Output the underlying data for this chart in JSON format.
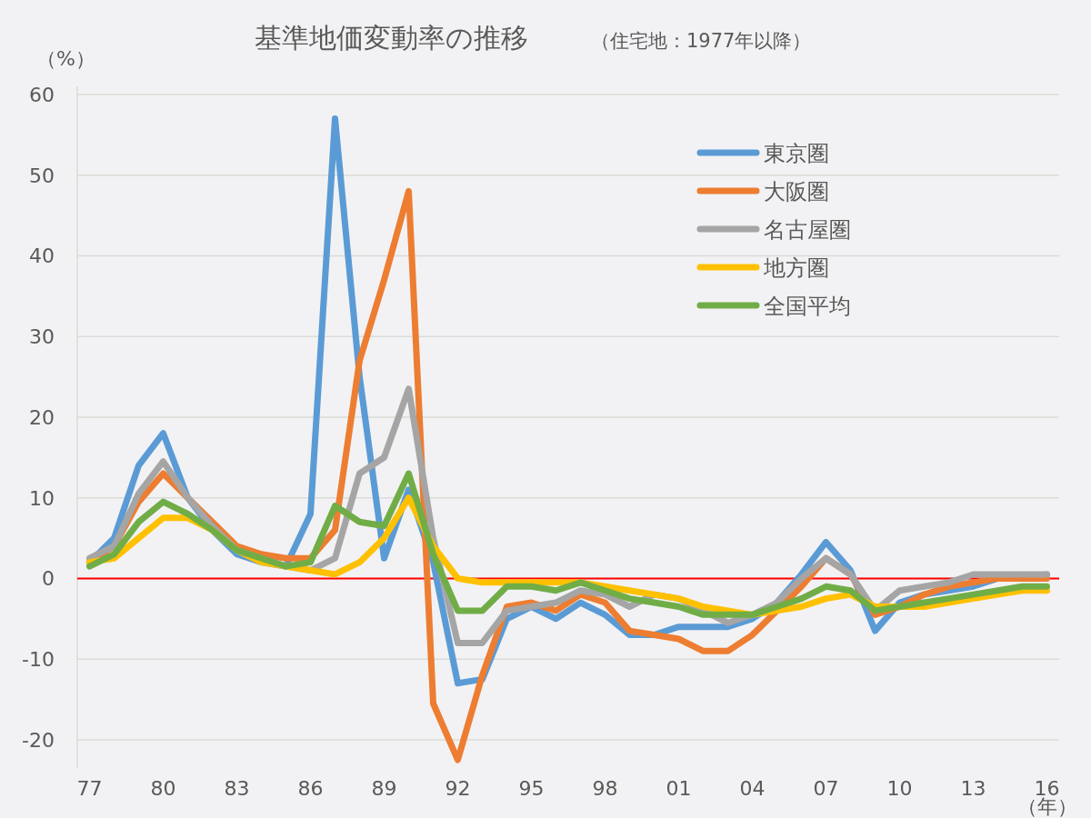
{
  "chart_data": {
    "type": "line",
    "title": "基準地価変動率の推移",
    "subtitle": "（住宅地：1977年以降）",
    "ylabel": "（%）",
    "xlabel": "（年）",
    "x": [
      1977,
      1978,
      1979,
      1980,
      1981,
      1982,
      1983,
      1984,
      1985,
      1986,
      1987,
      1988,
      1989,
      1990,
      1991,
      1992,
      1993,
      1994,
      1995,
      1996,
      1997,
      1998,
      1999,
      2000,
      2001,
      2002,
      2003,
      2004,
      2005,
      2006,
      2007,
      2008,
      2009,
      2010,
      2011,
      2012,
      2013,
      2014,
      2015,
      2016
    ],
    "series": [
      {
        "name": "東京圏",
        "color": "#5b9bd5",
        "values": [
          2,
          5,
          14,
          18,
          10,
          6,
          3,
          2,
          1.5,
          8,
          57,
          25,
          2.5,
          11,
          2,
          -13,
          -12.5,
          -5,
          -3.5,
          -5,
          -3,
          -4.5,
          -7,
          -7,
          -6,
          -6,
          -6,
          -5,
          -3,
          0.5,
          4.5,
          1,
          -6.5,
          -3,
          -2,
          -1.5,
          -1,
          0,
          0,
          0.5
        ]
      },
      {
        "name": "大阪圏",
        "color": "#ed7d31",
        "values": [
          2,
          4,
          9.5,
          13,
          10,
          7,
          4,
          3,
          2.5,
          2.5,
          6,
          27,
          37,
          48,
          -15.5,
          -22.5,
          -12,
          -3.5,
          -3,
          -4,
          -2,
          -3,
          -6.5,
          -7,
          -7.5,
          -9,
          -9,
          -7,
          -4,
          -1,
          2.5,
          0.5,
          -4.5,
          -3.5,
          -2,
          -1,
          -0.5,
          0,
          0,
          0
        ]
      },
      {
        "name": "名古屋圏",
        "color": "#a5a5a5",
        "values": [
          2.5,
          4,
          10.5,
          14.5,
          10,
          6.5,
          3.5,
          2.5,
          1.5,
          1,
          2.5,
          13,
          15,
          23.5,
          5,
          -8,
          -8,
          -4,
          -3.5,
          -3,
          -1.5,
          -2,
          -3.5,
          -2,
          -2.5,
          -4,
          -5.5,
          -4.5,
          -3,
          0,
          2.5,
          0.5,
          -4,
          -1.5,
          -1,
          -0.5,
          0.5,
          0.5,
          0.5,
          0.5
        ]
      },
      {
        "name": "地方圏",
        "color": "#ffc000",
        "values": [
          2,
          2.5,
          5,
          7.5,
          7.5,
          6,
          3.5,
          2,
          1.5,
          1,
          0.5,
          2,
          5,
          10,
          4,
          0,
          -0.5,
          -0.5,
          -0.5,
          -0.5,
          -0.5,
          -1,
          -1.5,
          -2,
          -2.5,
          -3.5,
          -4,
          -4.5,
          -4,
          -3.5,
          -2.5,
          -2,
          -3.5,
          -3.5,
          -3.5,
          -3,
          -2.5,
          -2,
          -1.5,
          -1.5
        ]
      },
      {
        "name": "全国平均",
        "color": "#70ad47",
        "values": [
          1.5,
          3,
          7,
          9.5,
          8,
          6,
          3.5,
          2.5,
          1.5,
          2,
          9,
          7,
          6.5,
          13,
          3,
          -4,
          -4,
          -1,
          -1,
          -1.5,
          -0.5,
          -1.5,
          -2.5,
          -3,
          -3.5,
          -4.5,
          -4.5,
          -4.5,
          -3.5,
          -2.5,
          -1,
          -1.5,
          -4,
          -3.5,
          -3,
          -2.5,
          -2,
          -1.5,
          -1,
          -1
        ]
      }
    ],
    "xlim": [
      1976.5,
      2016.5
    ],
    "xticks": [
      {
        "value": 1977,
        "label": "77"
      },
      {
        "value": 1980,
        "label": "80"
      },
      {
        "value": 1983,
        "label": "83"
      },
      {
        "value": 1986,
        "label": "86"
      },
      {
        "value": 1989,
        "label": "89"
      },
      {
        "value": 1992,
        "label": "92"
      },
      {
        "value": 1995,
        "label": "95"
      },
      {
        "value": 1998,
        "label": "98"
      },
      {
        "value": 2001,
        "label": "01"
      },
      {
        "value": 2004,
        "label": "04"
      },
      {
        "value": 2007,
        "label": "07"
      },
      {
        "value": 2010,
        "label": "10"
      },
      {
        "value": 2013,
        "label": "13"
      },
      {
        "value": 2016,
        "label": "16"
      }
    ],
    "ylim": [
      -23.5,
      61
    ],
    "yticks": [
      -20,
      -10,
      0,
      10,
      20,
      30,
      40,
      50,
      60
    ],
    "ref_lines": [
      {
        "axis": "y",
        "value": 0,
        "color": "#ff0000"
      }
    ],
    "grid": "y",
    "legend": "top right",
    "marker": "none",
    "line_style": "solid"
  }
}
